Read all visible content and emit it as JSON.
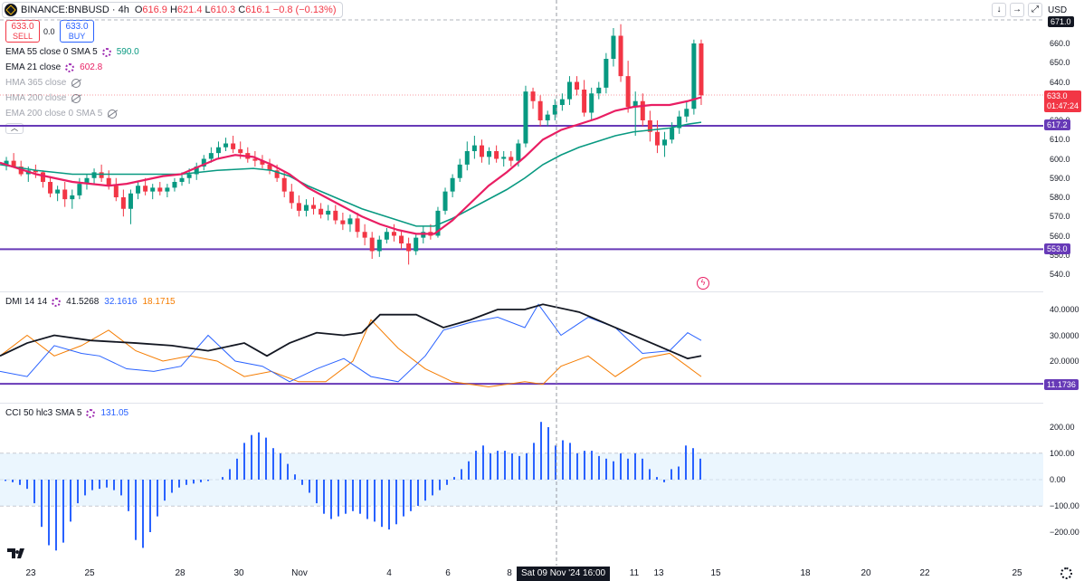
{
  "header": {
    "symbol": "BINANCE:BNBUSD · 4h",
    "open_label": "O",
    "open": "616.9",
    "high_label": "H",
    "high": "621.4",
    "low_label": "L",
    "low": "610.3",
    "close_label": "C",
    "close": "616.1",
    "change": "−0.8 (−0.13%)",
    "currency": "USD"
  },
  "trade": {
    "sell_price": "633.0",
    "sell_label": "SELL",
    "buy_price": "633.0",
    "buy_label": "BUY",
    "spread": "0.0"
  },
  "legend": [
    {
      "label": "EMA 55 close 0 SMA 5",
      "value": "590.0",
      "color": "#089981",
      "hidden": false
    },
    {
      "label": "EMA 21 close",
      "value": "602.8",
      "color": "#e91e63",
      "hidden": false
    },
    {
      "label": "HMA 365 close",
      "value": "",
      "hidden": true
    },
    {
      "label": "HMA 200 close",
      "value": "",
      "hidden": true
    },
    {
      "label": "EMA 200 close 0 SMA 5",
      "value": "",
      "hidden": true
    }
  ],
  "dmi_legend": {
    "label": "DMI 14 14",
    "adx": "41.5268",
    "plus": "32.1616",
    "minus": "18.1715"
  },
  "cci_legend": {
    "label": "CCI 50 hlc3 SMA 5",
    "value": "131.05"
  },
  "price_axis": [
    "660.0",
    "650.0",
    "640.0",
    "630.0",
    "620.0",
    "610.0",
    "600.0",
    "590.0",
    "580.0",
    "570.0",
    "560.0",
    "550.0",
    "540.0"
  ],
  "price_axis_top": "671.0",
  "price_tags": {
    "last": "633.0",
    "countdown": "01:47:24",
    "level_high": "617.2",
    "level_low": "553.0",
    "dmi_level": "11.1736"
  },
  "dmi_axis": [
    "40.0000",
    "30.0000",
    "20.0000"
  ],
  "cci_axis": [
    "200.00",
    "100.00",
    "0.00",
    "−100.00",
    "−200.00"
  ],
  "date_axis": [
    "23",
    "25",
    "28",
    "30",
    "Nov",
    "4",
    "6",
    "8",
    "11",
    "13",
    "15",
    "18",
    "20",
    "22",
    "25"
  ],
  "cursor_date": "Sat 09 Nov '24   16:00",
  "colors": {
    "up": "#089981",
    "down": "#f23645",
    "ema21": "#e91e63",
    "ema55": "#089981",
    "level": "#673ab7",
    "adx": "#131722",
    "plus_di": "#2962ff",
    "minus_di": "#f57c00",
    "cci": "#2962ff"
  },
  "chart_data": {
    "type": "candlestick",
    "price_candles": [
      [
        597,
        601,
        594,
        599
      ],
      [
        599,
        603,
        596,
        596
      ],
      [
        596,
        599,
        591,
        592
      ],
      [
        592,
        596,
        588,
        594
      ],
      [
        594,
        597,
        590,
        593
      ],
      [
        593,
        594,
        585,
        588
      ],
      [
        588,
        591,
        580,
        582
      ],
      [
        582,
        586,
        578,
        584
      ],
      [
        584,
        588,
        575,
        579
      ],
      [
        579,
        584,
        574,
        581
      ],
      [
        581,
        590,
        579,
        587
      ],
      [
        587,
        592,
        584,
        590
      ],
      [
        590,
        595,
        587,
        593
      ],
      [
        593,
        597,
        588,
        590
      ],
      [
        590,
        594,
        584,
        586
      ],
      [
        586,
        590,
        578,
        580
      ],
      [
        580,
        584,
        570,
        574
      ],
      [
        574,
        584,
        566,
        582
      ],
      [
        582,
        588,
        579,
        586
      ],
      [
        586,
        590,
        581,
        583
      ],
      [
        583,
        587,
        579,
        585
      ],
      [
        585,
        588,
        581,
        583
      ],
      [
        583,
        587,
        580,
        585
      ],
      [
        585,
        590,
        583,
        588
      ],
      [
        588,
        593,
        586,
        590
      ],
      [
        590,
        595,
        587,
        592
      ],
      [
        592,
        598,
        589,
        596
      ],
      [
        596,
        602,
        594,
        600
      ],
      [
        600,
        606,
        598,
        603
      ],
      [
        603,
        609,
        600,
        606
      ],
      [
        606,
        611,
        604,
        608
      ],
      [
        608,
        612,
        603,
        605
      ],
      [
        605,
        609,
        600,
        603
      ],
      [
        603,
        606,
        598,
        600
      ],
      [
        600,
        604,
        596,
        599
      ],
      [
        599,
        602,
        595,
        597
      ],
      [
        597,
        600,
        592,
        594
      ],
      [
        594,
        597,
        588,
        590
      ],
      [
        590,
        593,
        580,
        583
      ],
      [
        583,
        587,
        574,
        577
      ],
      [
        577,
        581,
        570,
        573
      ],
      [
        573,
        579,
        570,
        576
      ],
      [
        576,
        580,
        571,
        574
      ],
      [
        574,
        577,
        569,
        571
      ],
      [
        571,
        576,
        568,
        573
      ],
      [
        573,
        576,
        566,
        568
      ],
      [
        568,
        572,
        563,
        566
      ],
      [
        566,
        571,
        562,
        569
      ],
      [
        569,
        572,
        559,
        562
      ],
      [
        562,
        566,
        555,
        559
      ],
      [
        559,
        562,
        548,
        552
      ],
      [
        552,
        560,
        549,
        558
      ],
      [
        558,
        564,
        556,
        562
      ],
      [
        562,
        566,
        557,
        560
      ],
      [
        560,
        563,
        553,
        556
      ],
      [
        556,
        559,
        545,
        552
      ],
      [
        552,
        561,
        550,
        559
      ],
      [
        559,
        565,
        556,
        562
      ],
      [
        562,
        566,
        558,
        560
      ],
      [
        560,
        575,
        559,
        573
      ],
      [
        573,
        585,
        571,
        583
      ],
      [
        583,
        592,
        580,
        590
      ],
      [
        590,
        600,
        588,
        597
      ],
      [
        597,
        609,
        594,
        604
      ],
      [
        604,
        612,
        600,
        607
      ],
      [
        607,
        610,
        598,
        601
      ],
      [
        601,
        606,
        597,
        604
      ],
      [
        604,
        607,
        598,
        600
      ],
      [
        600,
        604,
        596,
        601
      ],
      [
        601,
        604,
        596,
        599
      ],
      [
        599,
        610,
        596,
        608
      ],
      [
        608,
        638,
        606,
        635
      ],
      [
        635,
        637,
        626,
        630
      ],
      [
        630,
        633,
        617,
        620
      ],
      [
        620,
        625,
        617,
        623
      ],
      [
        623,
        631,
        620,
        628
      ],
      [
        628,
        634,
        625,
        631
      ],
      [
        631,
        643,
        628,
        640
      ],
      [
        640,
        643,
        633,
        636
      ],
      [
        636,
        641,
        622,
        624
      ],
      [
        624,
        637,
        620,
        634
      ],
      [
        634,
        640,
        631,
        637
      ],
      [
        637,
        655,
        634,
        652
      ],
      [
        652,
        668,
        648,
        664
      ],
      [
        664,
        670,
        640,
        643
      ],
      [
        643,
        651,
        624,
        627
      ],
      [
        627,
        635,
        612,
        630
      ],
      [
        630,
        634,
        617,
        620
      ],
      [
        620,
        625,
        609,
        614
      ],
      [
        614,
        620,
        603,
        607
      ],
      [
        607,
        614,
        601,
        610
      ],
      [
        610,
        619,
        608,
        616
      ],
      [
        616,
        625,
        613,
        622
      ],
      [
        622,
        630,
        619,
        626
      ],
      [
        626,
        662,
        623,
        660
      ],
      [
        660,
        662,
        628,
        633
      ]
    ],
    "ema21": [
      [
        0,
        598
      ],
      [
        20,
        595
      ],
      [
        40,
        592
      ],
      [
        60,
        590
      ],
      [
        80,
        588
      ],
      [
        100,
        587
      ],
      [
        120,
        586
      ],
      [
        140,
        587
      ],
      [
        160,
        589
      ],
      [
        180,
        591
      ],
      [
        200,
        592
      ],
      [
        220,
        596
      ],
      [
        240,
        600
      ],
      [
        260,
        602
      ],
      [
        280,
        601
      ],
      [
        300,
        597
      ],
      [
        320,
        592
      ],
      [
        340,
        585
      ],
      [
        360,
        580
      ],
      [
        380,
        575
      ],
      [
        400,
        570
      ],
      [
        420,
        566
      ],
      [
        440,
        563
      ],
      [
        460,
        561
      ],
      [
        480,
        561
      ],
      [
        500,
        568
      ],
      [
        520,
        577
      ],
      [
        540,
        586
      ],
      [
        560,
        593
      ],
      [
        580,
        601
      ],
      [
        600,
        610
      ],
      [
        620,
        615
      ],
      [
        640,
        618
      ],
      [
        660,
        621
      ],
      [
        680,
        625
      ],
      [
        700,
        627
      ],
      [
        720,
        628
      ],
      [
        740,
        628
      ],
      [
        760,
        630
      ],
      [
        775,
        632
      ]
    ],
    "ema55": [
      [
        0,
        597
      ],
      [
        40,
        594
      ],
      [
        80,
        592
      ],
      [
        120,
        592
      ],
      [
        160,
        592
      ],
      [
        200,
        592
      ],
      [
        240,
        594
      ],
      [
        280,
        595
      ],
      [
        300,
        594
      ],
      [
        320,
        591
      ],
      [
        340,
        586
      ],
      [
        360,
        582
      ],
      [
        380,
        578
      ],
      [
        400,
        574
      ],
      [
        420,
        571
      ],
      [
        440,
        568
      ],
      [
        460,
        565
      ],
      [
        480,
        565
      ],
      [
        500,
        569
      ],
      [
        520,
        574
      ],
      [
        540,
        579
      ],
      [
        560,
        584
      ],
      [
        580,
        590
      ],
      [
        600,
        597
      ],
      [
        620,
        602
      ],
      [
        640,
        606
      ],
      [
        660,
        609
      ],
      [
        680,
        612
      ],
      [
        700,
        614
      ],
      [
        720,
        615
      ],
      [
        740,
        616
      ],
      [
        760,
        618
      ],
      [
        775,
        619
      ]
    ],
    "levels": [
      617.2,
      553.0
    ],
    "dmi_adx": [
      [
        0,
        22
      ],
      [
        30,
        27
      ],
      [
        60,
        30
      ],
      [
        100,
        28
      ],
      [
        150,
        27
      ],
      [
        190,
        26
      ],
      [
        230,
        24
      ],
      [
        270,
        27
      ],
      [
        295,
        22
      ],
      [
        320,
        27
      ],
      [
        350,
        31
      ],
      [
        380,
        30
      ],
      [
        400,
        31
      ],
      [
        420,
        38
      ],
      [
        460,
        38
      ],
      [
        490,
        33
      ],
      [
        520,
        36
      ],
      [
        550,
        40
      ],
      [
        580,
        40
      ],
      [
        600,
        42
      ],
      [
        640,
        39
      ],
      [
        680,
        33
      ],
      [
        720,
        27
      ],
      [
        760,
        21
      ],
      [
        775,
        22
      ]
    ],
    "dmi_plus": [
      [
        0,
        16
      ],
      [
        30,
        14
      ],
      [
        60,
        26
      ],
      [
        90,
        23
      ],
      [
        110,
        22
      ],
      [
        140,
        17
      ],
      [
        170,
        16
      ],
      [
        200,
        18
      ],
      [
        230,
        30
      ],
      [
        260,
        20
      ],
      [
        290,
        18
      ],
      [
        320,
        12
      ],
      [
        350,
        17
      ],
      [
        380,
        21
      ],
      [
        410,
        14
      ],
      [
        440,
        12
      ],
      [
        470,
        22
      ],
      [
        490,
        32
      ],
      [
        520,
        35
      ],
      [
        550,
        37
      ],
      [
        580,
        33
      ],
      [
        595,
        42
      ],
      [
        620,
        30
      ],
      [
        650,
        37
      ],
      [
        680,
        33
      ],
      [
        710,
        23
      ],
      [
        740,
        24
      ],
      [
        760,
        31
      ],
      [
        775,
        28
      ]
    ],
    "dmi_minus": [
      [
        0,
        22
      ],
      [
        30,
        30
      ],
      [
        60,
        22
      ],
      [
        90,
        26
      ],
      [
        120,
        32
      ],
      [
        150,
        24
      ],
      [
        180,
        20
      ],
      [
        210,
        22
      ],
      [
        240,
        20
      ],
      [
        270,
        14
      ],
      [
        300,
        16
      ],
      [
        330,
        12
      ],
      [
        360,
        12
      ],
      [
        390,
        20
      ],
      [
        410,
        36
      ],
      [
        440,
        25
      ],
      [
        470,
        17
      ],
      [
        500,
        12
      ],
      [
        540,
        10
      ],
      [
        580,
        12
      ],
      [
        600,
        11
      ],
      [
        620,
        18
      ],
      [
        650,
        22
      ],
      [
        680,
        14
      ],
      [
        710,
        21
      ],
      [
        740,
        23
      ],
      [
        775,
        14
      ]
    ],
    "dmi_level": 11.1736,
    "cci": [
      -5,
      -10,
      -20,
      -35,
      -90,
      -180,
      -250,
      -270,
      -240,
      -160,
      -90,
      -60,
      -40,
      -35,
      -30,
      -40,
      -60,
      -120,
      -230,
      -260,
      -200,
      -140,
      -80,
      -50,
      -30,
      -20,
      -15,
      -10,
      -5,
      0,
      10,
      40,
      80,
      140,
      170,
      180,
      160,
      120,
      100,
      60,
      20,
      -20,
      -50,
      -90,
      -130,
      -150,
      -140,
      -130,
      -120,
      -130,
      -150,
      -160,
      -180,
      -190,
      -170,
      -140,
      -120,
      -100,
      -80,
      -60,
      -40,
      -20,
      10,
      40,
      70,
      110,
      130,
      100,
      110,
      110,
      100,
      90,
      100,
      140,
      220,
      200,
      130,
      150,
      140,
      100,
      110,
      110,
      90,
      80,
      70,
      100,
      80,
      100,
      80,
      40,
      10,
      -10,
      40,
      50,
      130,
      120,
      80
    ],
    "cci_axis_range": [
      -300,
      250
    ],
    "dmi_axis_range": [
      5,
      45
    ],
    "price_axis_range": [
      535,
      671
    ]
  }
}
